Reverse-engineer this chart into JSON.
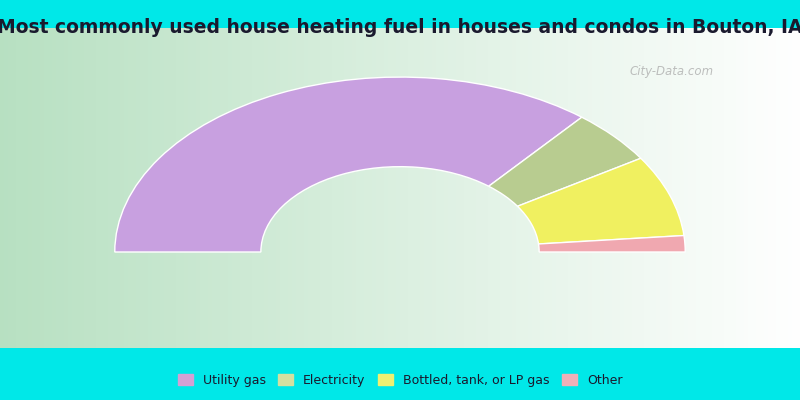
{
  "title": "Most commonly used house heating fuel in houses and condos in Bouton, IA",
  "title_fontsize": 13.5,
  "title_color": "#1a1a2e",
  "outer_bg_color": "#00e8e8",
  "chart_bg_left": "#b8ddb8",
  "chart_bg_right": "#f0f8f0",
  "categories": [
    "Utility gas",
    "Electricity",
    "Bottled, tank, or LP gas",
    "Other"
  ],
  "values": [
    72,
    10,
    15,
    3
  ],
  "colors": [
    "#c8a0e0",
    "#b8cc90",
    "#f0f060",
    "#f0a8b0"
  ],
  "legend_colors": [
    "#d4a0d4",
    "#d4e0a0",
    "#f0f070",
    "#f0b0b8"
  ],
  "watermark": "City-Data.com",
  "outer_r": 0.82,
  "inner_r": 0.4
}
